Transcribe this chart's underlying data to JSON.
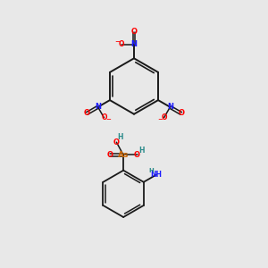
{
  "background_color": "#e8e8e8",
  "fig_width": 3.0,
  "fig_height": 3.0,
  "dpi": 100,
  "colors": {
    "bond": "#1a1a1a",
    "N": "#1a1aff",
    "O": "#ff0000",
    "As": "#cc6600",
    "NH": "#1a1aff",
    "H": "#2a8a8a"
  }
}
